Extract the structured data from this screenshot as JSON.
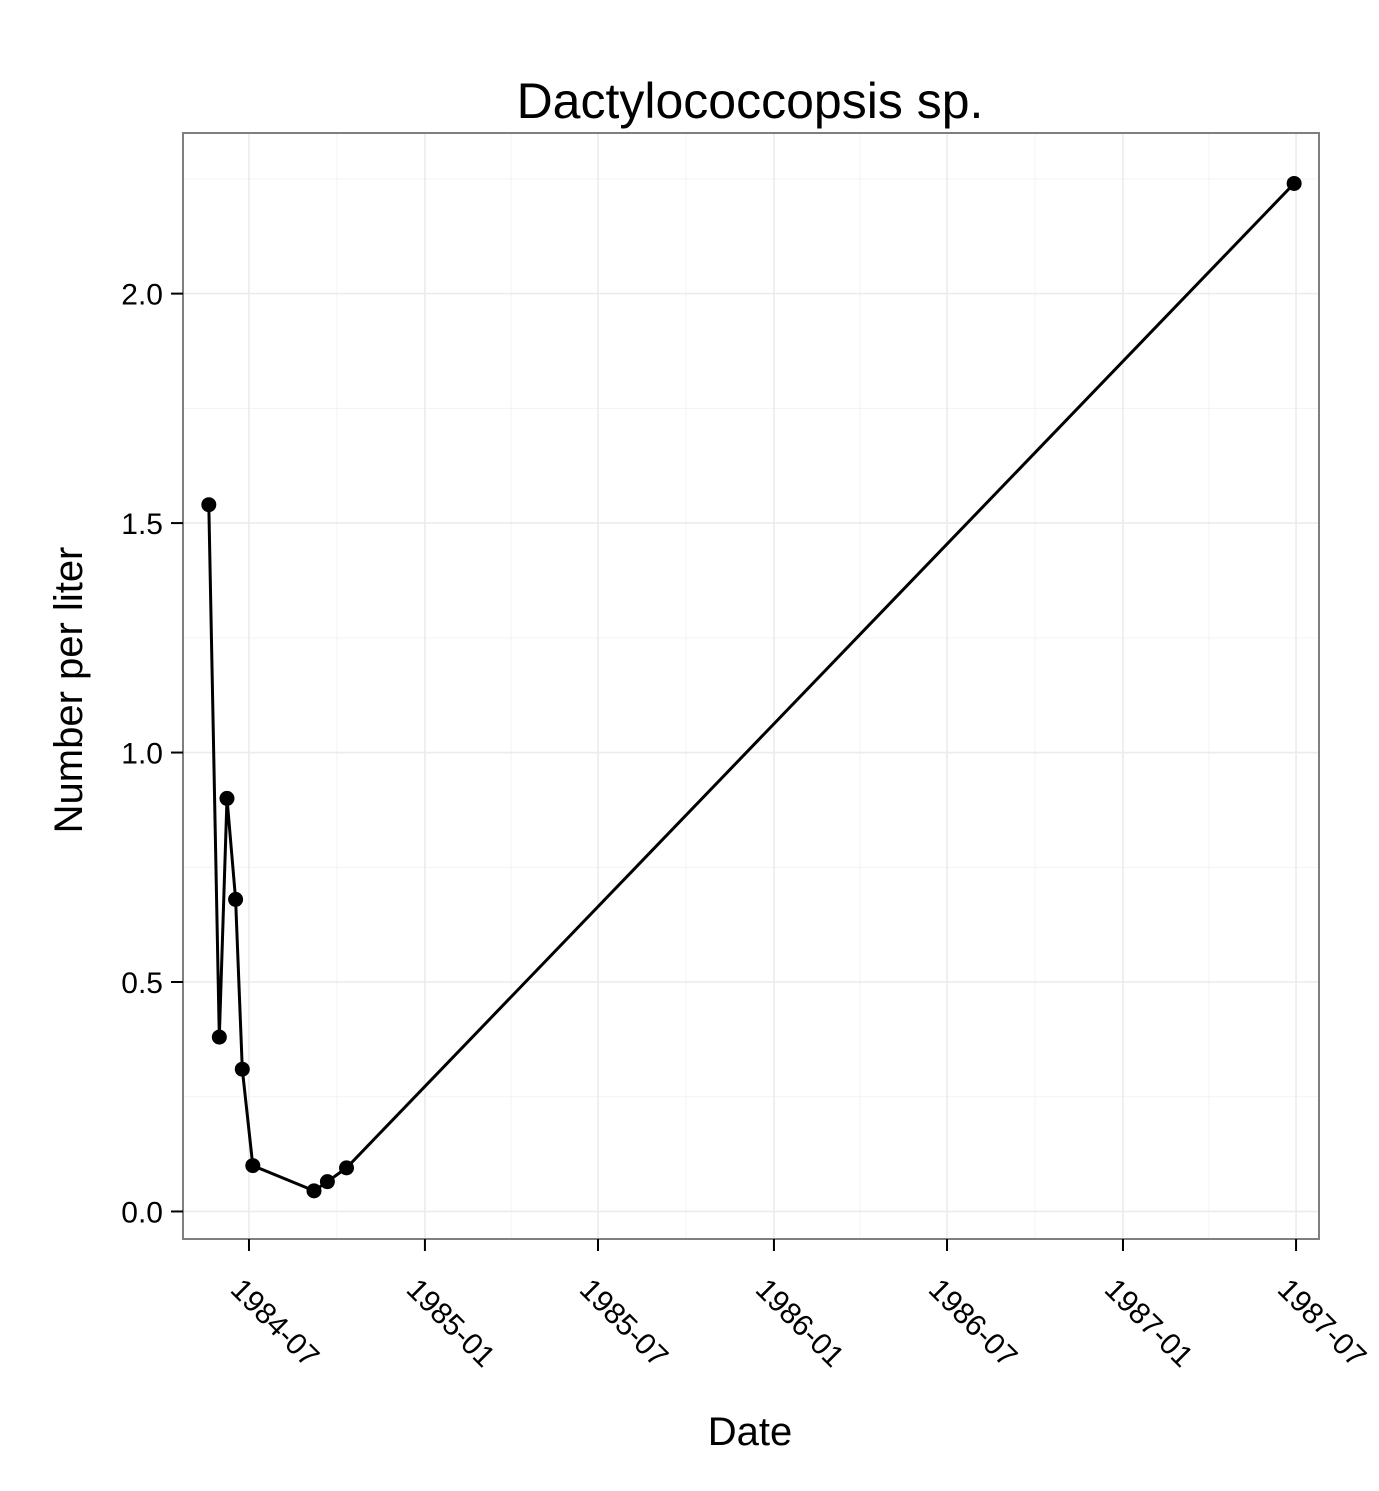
{
  "chart_data": {
    "type": "line",
    "title": "Dactylococcopsis sp.",
    "xlabel": "Date",
    "ylabel": "Number per liter",
    "x_ticks": [
      "1984-07",
      "1985-01",
      "1985-07",
      "1986-01",
      "1986-07",
      "1987-01",
      "1987-07"
    ],
    "y_ticks": [
      "0.0",
      "0.5",
      "1.0",
      "1.5",
      "2.0"
    ],
    "xlim": [
      "1984-04-23",
      "1987-07-25"
    ],
    "ylim": [
      -0.06,
      2.35
    ],
    "grid": true,
    "series": [
      {
        "x": [
          "1984-05-20",
          "1984-05-31",
          "1984-06-08",
          "1984-06-17",
          "1984-06-24",
          "1984-07-05",
          "1984-09-07",
          "1984-09-21",
          "1984-10-11",
          "1987-06-29"
        ],
        "y": [
          1.54,
          0.38,
          0.9,
          0.68,
          0.31,
          0.1,
          0.045,
          0.065,
          0.095,
          2.24
        ]
      }
    ],
    "colors": {
      "line": "#000000",
      "grid": "#ebebeb",
      "panel_border": "#7f7f7f"
    }
  }
}
